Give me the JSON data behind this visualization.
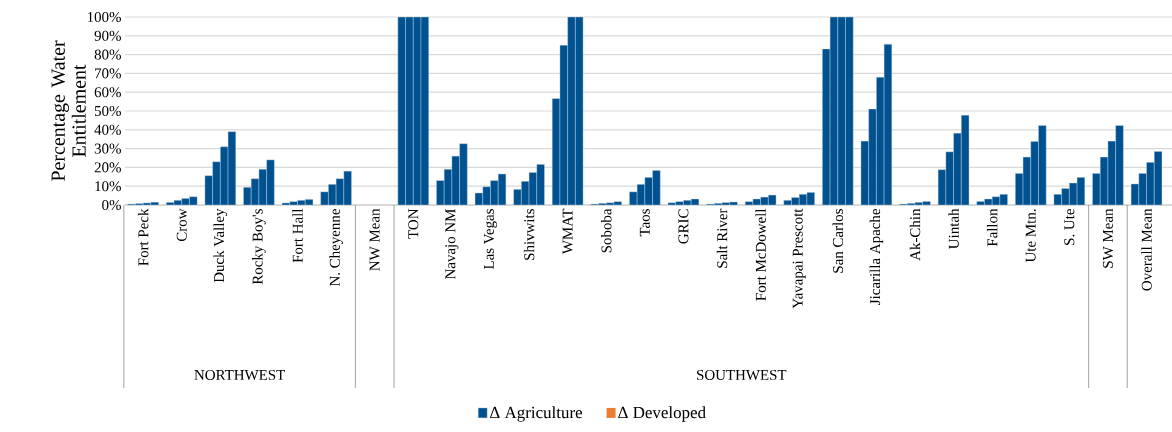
{
  "chart_data": {
    "type": "bar",
    "ylabel": "Percentage Water Entitlement",
    "categories": [
      "Fort Peck",
      "Crow",
      "Duck Valley",
      "Rocky Boy's",
      "Fort Hall",
      "N. Cheyenne",
      "NW Mean",
      "TON",
      "Navajo NM",
      "Las Vegas",
      "Shivwits",
      "WMAT",
      "Soboba",
      "Taos",
      "GRIC",
      "Salt River",
      "Fort McDowell",
      "Yavapai Prescott",
      "San Carlos",
      "Jicarilla Apache",
      "Ak-Chin",
      "Uintah",
      "Fallon",
      "Ute Mtn.",
      "S. Ute",
      "SW Mean",
      "Overall Mean"
    ],
    "series": [
      {
        "name": "Δ Agriculture",
        "color": "#00518f",
        "values": [
          0.5,
          1.4,
          15.6,
          9.4,
          1.1,
          7,
          null,
          100,
          13,
          6.4,
          8.3,
          56.6,
          0.5,
          7,
          1.2,
          0.5,
          1.8,
          2.5,
          83,
          34,
          0.5,
          18.8,
          1.9,
          16.8,
          5.7,
          16.8,
          11.2
        ]
      },
      {
        "color": "#00518f",
        "values": [
          0.8,
          2.5,
          23,
          14,
          1.8,
          11,
          null,
          100,
          19,
          9.7,
          12.6,
          85,
          0.9,
          11,
          1.8,
          0.9,
          3.2,
          4,
          100,
          51,
          0.9,
          28.3,
          3.2,
          25.5,
          8.8,
          25.5,
          16.8
        ]
      },
      {
        "color": "#00518f",
        "values": [
          1.1,
          3.5,
          31,
          19,
          2.5,
          14,
          null,
          100,
          26,
          13,
          17.3,
          100,
          1.2,
          14.7,
          2.5,
          1.3,
          4.2,
          5.7,
          100,
          68,
          1.4,
          38.2,
          4.4,
          33.8,
          11.7,
          34,
          22.7
        ]
      },
      {
        "color": "#00518f",
        "values": [
          1.5,
          4.4,
          39,
          24,
          3,
          18,
          null,
          100,
          32.6,
          16.5,
          21.6,
          100,
          1.8,
          18.4,
          3.2,
          1.6,
          5.3,
          6.7,
          100,
          85.5,
          1.9,
          47.8,
          5.7,
          42.3,
          14.7,
          42.3,
          28.5
        ]
      },
      {
        "name": "Δ Developed",
        "color": "#ed7d31",
        "values": [
          null,
          null,
          null,
          null,
          null,
          null,
          null,
          null,
          null,
          null,
          null,
          null,
          null,
          null,
          null,
          null,
          null,
          null,
          null,
          null,
          null,
          null,
          null,
          null,
          null,
          null,
          null
        ]
      }
    ],
    "ylim": [
      0,
      100
    ],
    "yticks": [
      {
        "value": 0,
        "label": "0%"
      },
      {
        "value": 10,
        "label": "10%"
      },
      {
        "value": 20,
        "label": "20%"
      },
      {
        "value": 30,
        "label": "30%"
      },
      {
        "value": 40,
        "label": "40%"
      },
      {
        "value": 50,
        "label": "50%"
      },
      {
        "value": 60,
        "label": "60%"
      },
      {
        "value": 70,
        "label": "70%"
      },
      {
        "value": 80,
        "label": "80%"
      },
      {
        "value": 90,
        "label": "90%"
      },
      {
        "value": 100,
        "label": "100%"
      }
    ],
    "grid": "y",
    "legend": "bottom",
    "annotations": [
      "NORTHWEST",
      "SOUTHWEST"
    ]
  }
}
